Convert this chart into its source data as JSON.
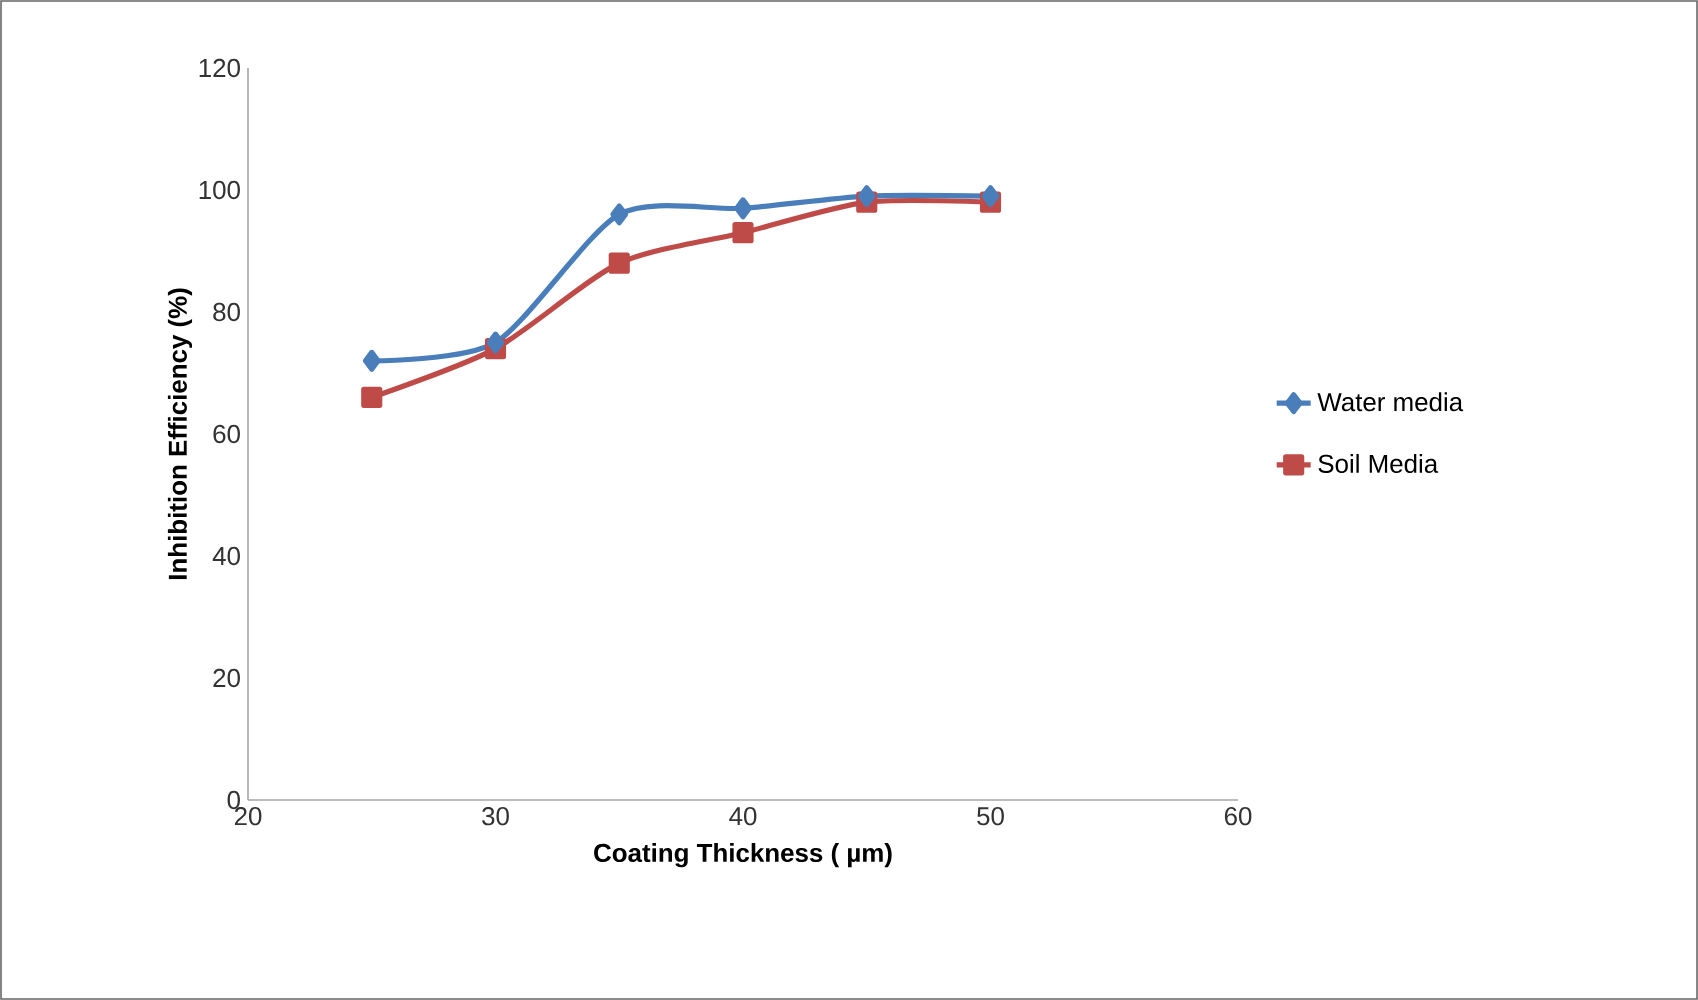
{
  "chart_data": {
    "type": "line",
    "xlabel": "Coating Thickness ( µm)",
    "ylabel": "Inhibition Efficiency (%)",
    "x": [
      25,
      30,
      35,
      40,
      45,
      50
    ],
    "series": [
      {
        "name": "Water media",
        "color": "#4a7ebb",
        "marker": "diamond",
        "values": [
          72,
          75,
          96,
          97,
          99,
          99
        ]
      },
      {
        "name": "Soil Media",
        "color": "#be4b48",
        "marker": "square",
        "values": [
          66,
          74,
          88,
          93,
          98,
          98
        ]
      }
    ],
    "xlim": [
      20,
      60
    ],
    "xticks": [
      20,
      30,
      40,
      50,
      60
    ],
    "ylim": [
      0,
      120
    ],
    "yticks": [
      0,
      20,
      40,
      60,
      80,
      100,
      120
    ],
    "grid": false,
    "legend": "right",
    "line_style": "solid"
  }
}
